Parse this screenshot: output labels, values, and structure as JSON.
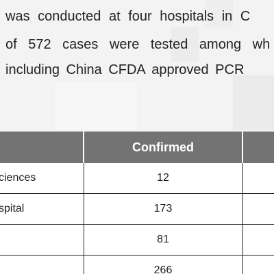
{
  "paragraph": {
    "lines": [
      "was conducted at four hospitals in C",
      "of 572 cases were tested among wh",
      "including China CFDA approved PCR"
    ]
  },
  "table": {
    "headers": [
      "",
      "Confirmed",
      ""
    ],
    "rows": [
      {
        "name": "ciences",
        "confirmed": "12",
        "extra": ""
      },
      {
        "name": "spital",
        "confirmed": "173",
        "extra": ""
      },
      {
        "name": "",
        "confirmed": "81",
        "extra": ""
      },
      {
        "name": "",
        "confirmed": "266",
        "extra": ""
      }
    ]
  }
}
